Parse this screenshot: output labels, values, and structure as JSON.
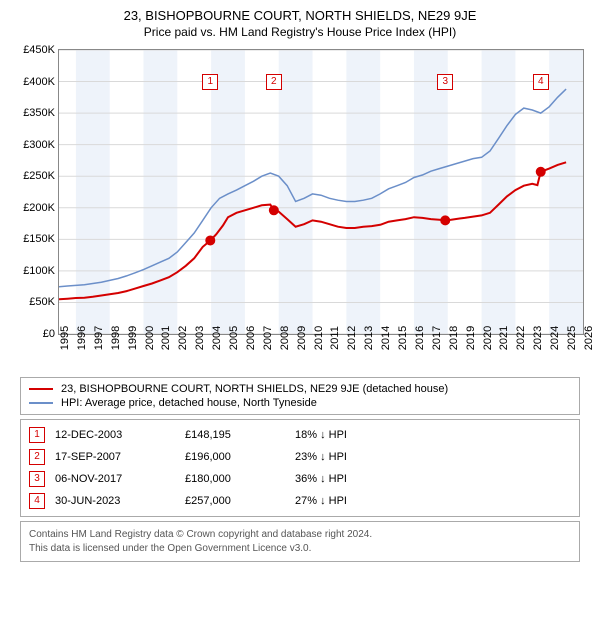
{
  "title": "23, BISHOPBOURNE COURT, NORTH SHIELDS, NE29 9JE",
  "subtitle": "Price paid vs. HM Land Registry's House Price Index (HPI)",
  "chart": {
    "type": "line",
    "background_color": "#ffffff",
    "band_color": "#eef3fa",
    "grid_color": "#d9d9d9",
    "axis_color": "#888888",
    "label_fontsize": 11,
    "x": {
      "min": 1995,
      "max": 2026,
      "ticks": [
        1995,
        1996,
        1997,
        1998,
        1999,
        2000,
        2001,
        2002,
        2003,
        2004,
        2005,
        2006,
        2007,
        2008,
        2009,
        2010,
        2011,
        2012,
        2013,
        2014,
        2015,
        2016,
        2017,
        2018,
        2019,
        2020,
        2021,
        2022,
        2023,
        2024,
        2025,
        2026
      ]
    },
    "y": {
      "min": 0,
      "max": 450000,
      "ticks": [
        0,
        50000,
        100000,
        150000,
        200000,
        250000,
        300000,
        350000,
        400000,
        450000
      ],
      "tick_labels": [
        "£0",
        "£50K",
        "£100K",
        "£150K",
        "£200K",
        "£250K",
        "£300K",
        "£350K",
        "£400K",
        "£450K"
      ]
    },
    "series": [
      {
        "name": "23, BISHOPBOURNE COURT, NORTH SHIELDS, NE29 9JE (detached house)",
        "color": "#d40000",
        "line_width": 2,
        "points": [
          [
            1995.0,
            55000
          ],
          [
            1995.5,
            56000
          ],
          [
            1996.0,
            57000
          ],
          [
            1996.5,
            57500
          ],
          [
            1997.0,
            59000
          ],
          [
            1997.5,
            61000
          ],
          [
            1998.0,
            63000
          ],
          [
            1998.5,
            65000
          ],
          [
            1999.0,
            68000
          ],
          [
            1999.5,
            72000
          ],
          [
            2000.0,
            76000
          ],
          [
            2000.5,
            80000
          ],
          [
            2001.0,
            85000
          ],
          [
            2001.5,
            90000
          ],
          [
            2002.0,
            98000
          ],
          [
            2002.5,
            108000
          ],
          [
            2003.0,
            120000
          ],
          [
            2003.5,
            138000
          ],
          [
            2003.95,
            148195
          ],
          [
            2004.3,
            158000
          ],
          [
            2004.7,
            172000
          ],
          [
            2005.0,
            185000
          ],
          [
            2005.5,
            192000
          ],
          [
            2006.0,
            196000
          ],
          [
            2006.5,
            200000
          ],
          [
            2007.0,
            204000
          ],
          [
            2007.5,
            205000
          ],
          [
            2007.71,
            196000
          ],
          [
            2008.0,
            194000
          ],
          [
            2008.5,
            182000
          ],
          [
            2009.0,
            170000
          ],
          [
            2009.5,
            174000
          ],
          [
            2010.0,
            180000
          ],
          [
            2010.5,
            178000
          ],
          [
            2011.0,
            174000
          ],
          [
            2011.5,
            170000
          ],
          [
            2012.0,
            168000
          ],
          [
            2012.5,
            168000
          ],
          [
            2013.0,
            170000
          ],
          [
            2013.5,
            171000
          ],
          [
            2014.0,
            173000
          ],
          [
            2014.5,
            178000
          ],
          [
            2015.0,
            180000
          ],
          [
            2015.5,
            182000
          ],
          [
            2016.0,
            185000
          ],
          [
            2016.5,
            184000
          ],
          [
            2017.0,
            182000
          ],
          [
            2017.5,
            181000
          ],
          [
            2017.85,
            180000
          ],
          [
            2018.2,
            181000
          ],
          [
            2018.7,
            183000
          ],
          [
            2019.0,
            184000
          ],
          [
            2019.5,
            186000
          ],
          [
            2020.0,
            188000
          ],
          [
            2020.5,
            192000
          ],
          [
            2021.0,
            205000
          ],
          [
            2021.5,
            218000
          ],
          [
            2022.0,
            228000
          ],
          [
            2022.5,
            235000
          ],
          [
            2023.0,
            238000
          ],
          [
            2023.3,
            236000
          ],
          [
            2023.5,
            257000
          ],
          [
            2024.0,
            262000
          ],
          [
            2024.5,
            268000
          ],
          [
            2025.0,
            272000
          ]
        ]
      },
      {
        "name": "HPI: Average price, detached house, North Tyneside",
        "color": "#6b8fc9",
        "line_width": 1.5,
        "points": [
          [
            1995.0,
            75000
          ],
          [
            1995.5,
            76000
          ],
          [
            1996.0,
            77000
          ],
          [
            1996.5,
            78000
          ],
          [
            1997.0,
            80000
          ],
          [
            1997.5,
            82000
          ],
          [
            1998.0,
            85000
          ],
          [
            1998.5,
            88000
          ],
          [
            1999.0,
            92000
          ],
          [
            1999.5,
            97000
          ],
          [
            2000.0,
            102000
          ],
          [
            2000.5,
            108000
          ],
          [
            2001.0,
            114000
          ],
          [
            2001.5,
            120000
          ],
          [
            2002.0,
            130000
          ],
          [
            2002.5,
            145000
          ],
          [
            2003.0,
            160000
          ],
          [
            2003.5,
            180000
          ],
          [
            2004.0,
            200000
          ],
          [
            2004.5,
            215000
          ],
          [
            2005.0,
            222000
          ],
          [
            2005.5,
            228000
          ],
          [
            2006.0,
            235000
          ],
          [
            2006.5,
            242000
          ],
          [
            2007.0,
            250000
          ],
          [
            2007.5,
            255000
          ],
          [
            2008.0,
            250000
          ],
          [
            2008.5,
            235000
          ],
          [
            2009.0,
            210000
          ],
          [
            2009.5,
            215000
          ],
          [
            2010.0,
            222000
          ],
          [
            2010.5,
            220000
          ],
          [
            2011.0,
            215000
          ],
          [
            2011.5,
            212000
          ],
          [
            2012.0,
            210000
          ],
          [
            2012.5,
            210000
          ],
          [
            2013.0,
            212000
          ],
          [
            2013.5,
            215000
          ],
          [
            2014.0,
            222000
          ],
          [
            2014.5,
            230000
          ],
          [
            2015.0,
            235000
          ],
          [
            2015.5,
            240000
          ],
          [
            2016.0,
            248000
          ],
          [
            2016.5,
            252000
          ],
          [
            2017.0,
            258000
          ],
          [
            2017.5,
            262000
          ],
          [
            2018.0,
            266000
          ],
          [
            2018.5,
            270000
          ],
          [
            2019.0,
            274000
          ],
          [
            2019.5,
            278000
          ],
          [
            2020.0,
            280000
          ],
          [
            2020.5,
            290000
          ],
          [
            2021.0,
            310000
          ],
          [
            2021.5,
            330000
          ],
          [
            2022.0,
            348000
          ],
          [
            2022.5,
            358000
          ],
          [
            2023.0,
            355000
          ],
          [
            2023.5,
            350000
          ],
          [
            2024.0,
            360000
          ],
          [
            2024.5,
            375000
          ],
          [
            2025.0,
            388000
          ]
        ]
      }
    ],
    "sale_markers": [
      {
        "n": "1",
        "x": 2003.95,
        "y": 148195,
        "box_y": 400000
      },
      {
        "n": "2",
        "x": 2007.71,
        "y": 196000,
        "box_y": 400000
      },
      {
        "n": "3",
        "x": 2017.85,
        "y": 180000,
        "box_y": 400000
      },
      {
        "n": "4",
        "x": 2023.5,
        "y": 257000,
        "box_y": 400000
      }
    ],
    "alt_bands_start": 1996,
    "alt_bands_width": 2
  },
  "legend": {
    "items": [
      {
        "color": "#d40000",
        "label": "23, BISHOPBOURNE COURT, NORTH SHIELDS, NE29 9JE (detached house)"
      },
      {
        "color": "#6b8fc9",
        "label": "HPI: Average price, detached house, North Tyneside"
      }
    ]
  },
  "transactions": [
    {
      "n": "1",
      "date": "12-DEC-2003",
      "price": "£148,195",
      "delta": "18% ↓ HPI"
    },
    {
      "n": "2",
      "date": "17-SEP-2007",
      "price": "£196,000",
      "delta": "23% ↓ HPI"
    },
    {
      "n": "3",
      "date": "06-NOV-2017",
      "price": "£180,000",
      "delta": "36% ↓ HPI"
    },
    {
      "n": "4",
      "date": "30-JUN-2023",
      "price": "£257,000",
      "delta": "27% ↓ HPI"
    }
  ],
  "footer": {
    "line1": "Contains HM Land Registry data © Crown copyright and database right 2024.",
    "line2": "This data is licensed under the Open Government Licence v3.0."
  }
}
